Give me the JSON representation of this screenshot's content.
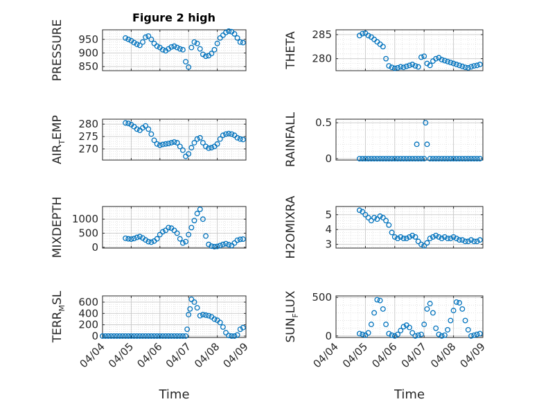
{
  "title": "Figure 2 high",
  "colors": {
    "marker": "#0072BD",
    "axis": "#262626",
    "grid": "#dcdcdc"
  },
  "chart_data": [
    {
      "type": "scatter",
      "ylabel": [
        "PRESSURE"
      ],
      "yticks": [
        850,
        900,
        950
      ],
      "ylim": [
        835,
        985
      ],
      "grid": true,
      "x": [
        0.8,
        0.9,
        1.0,
        1.1,
        1.2,
        1.3,
        1.4,
        1.5,
        1.6,
        1.7,
        1.8,
        1.9,
        2.0,
        2.1,
        2.2,
        2.3,
        2.4,
        2.5,
        2.6,
        2.7,
        2.8,
        2.9,
        3.0,
        3.1,
        3.2,
        3.3,
        3.4,
        3.5,
        3.6,
        3.7,
        3.8,
        3.9,
        4.0,
        4.1,
        4.2,
        4.3,
        4.4,
        4.5,
        4.6,
        4.7,
        4.8,
        4.9
      ],
      "y": [
        955,
        950,
        945,
        938,
        932,
        928,
        940,
        958,
        962,
        950,
        935,
        925,
        920,
        912,
        908,
        915,
        922,
        925,
        920,
        915,
        912,
        868,
        848,
        920,
        940,
        935,
        915,
        895,
        888,
        890,
        898,
        912,
        935,
        955,
        965,
        975,
        980,
        978,
        970,
        955,
        940,
        938
      ]
    },
    {
      "type": "scatter",
      "ylabel": [
        "THETA"
      ],
      "yticks": [
        280,
        285
      ],
      "ylim": [
        277.5,
        286
      ],
      "grid": true,
      "x": [
        0.8,
        0.9,
        1.0,
        1.1,
        1.2,
        1.3,
        1.4,
        1.5,
        1.6,
        1.7,
        1.8,
        1.9,
        2.0,
        2.1,
        2.2,
        2.3,
        2.4,
        2.5,
        2.6,
        2.7,
        2.8,
        2.9,
        3.0,
        3.1,
        3.2,
        3.3,
        3.4,
        3.5,
        3.6,
        3.7,
        3.8,
        3.9,
        4.0,
        4.1,
        4.2,
        4.3,
        4.4,
        4.5,
        4.6,
        4.7,
        4.8,
        4.9
      ],
      "y": [
        284.8,
        285.2,
        285.3,
        284.8,
        284.5,
        284.0,
        283.5,
        283.0,
        282.5,
        280.0,
        278.5,
        278.2,
        278.0,
        278.1,
        278.3,
        278.2,
        278.4,
        278.6,
        278.8,
        278.5,
        278.3,
        280.3,
        280.5,
        279.0,
        278.6,
        279.5,
        280.0,
        280.2,
        279.8,
        279.6,
        279.4,
        279.2,
        279.0,
        278.8,
        278.6,
        278.4,
        278.2,
        278.1,
        278.3,
        278.5,
        278.6,
        278.8
      ]
    },
    {
      "type": "scatter",
      "ylabel": [
        "AIR",
        "T",
        "EMP"
      ],
      "yticks": [
        270,
        275,
        280
      ],
      "ylim": [
        265.5,
        282
      ],
      "grid": true,
      "x": [
        0.8,
        0.9,
        1.0,
        1.1,
        1.2,
        1.3,
        1.4,
        1.5,
        1.6,
        1.7,
        1.8,
        1.9,
        2.0,
        2.1,
        2.2,
        2.3,
        2.4,
        2.5,
        2.6,
        2.7,
        2.8,
        2.9,
        3.0,
        3.1,
        3.2,
        3.3,
        3.4,
        3.5,
        3.6,
        3.7,
        3.8,
        3.9,
        4.0,
        4.1,
        4.2,
        4.3,
        4.4,
        4.5,
        4.6,
        4.7,
        4.8,
        4.9
      ],
      "y": [
        280.5,
        280.3,
        279.8,
        279.0,
        278.0,
        277.5,
        278.5,
        279.3,
        278.0,
        276.0,
        273.5,
        272.0,
        271.5,
        271.8,
        272.0,
        272.2,
        272.5,
        272.8,
        272.5,
        271.0,
        269.5,
        267.0,
        268.0,
        270.5,
        272.5,
        274.0,
        274.5,
        272.5,
        271.0,
        270.3,
        270.5,
        271.0,
        272.0,
        274.0,
        275.5,
        276.0,
        276.2,
        276.0,
        275.5,
        274.5,
        274.0,
        273.8
      ]
    },
    {
      "type": "scatter",
      "ylabel": [
        "RAINFALL"
      ],
      "yticks": [
        0,
        0.5
      ],
      "ytick_labels": [
        "0",
        "0.5"
      ],
      "ylim": [
        -0.02,
        0.55
      ],
      "grid": true,
      "x": [
        0.8,
        0.9,
        1.0,
        1.1,
        1.2,
        1.3,
        1.4,
        1.5,
        1.6,
        1.7,
        1.8,
        1.9,
        2.0,
        2.1,
        2.2,
        2.3,
        2.4,
        2.5,
        2.6,
        2.7,
        2.75,
        2.8,
        2.9,
        3.0,
        3.05,
        3.1,
        3.2,
        3.3,
        3.4,
        3.5,
        3.6,
        3.7,
        3.8,
        3.9,
        4.0,
        4.1,
        4.2,
        4.3,
        4.4,
        4.5,
        4.6,
        4.7,
        4.8,
        4.9
      ],
      "y": [
        0,
        0,
        0,
        0,
        0,
        0,
        0,
        0,
        0,
        0,
        0,
        0,
        0,
        0,
        0,
        0,
        0,
        0,
        0,
        0,
        0.2,
        0,
        0,
        0,
        0.5,
        0.2,
        0,
        0,
        0,
        0,
        0,
        0,
        0,
        0,
        0,
        0,
        0,
        0,
        0,
        0,
        0,
        0,
        0,
        0
      ]
    },
    {
      "type": "scatter",
      "ylabel": [
        "MIXDEPTH"
      ],
      "yticks": [
        0,
        500,
        1000
      ],
      "ylim": [
        -30,
        1450
      ],
      "grid": true,
      "x": [
        0.8,
        0.9,
        1.0,
        1.1,
        1.2,
        1.3,
        1.4,
        1.5,
        1.6,
        1.7,
        1.8,
        1.9,
        2.0,
        2.1,
        2.2,
        2.3,
        2.4,
        2.5,
        2.6,
        2.7,
        2.8,
        2.9,
        3.0,
        3.1,
        3.2,
        3.3,
        3.4,
        3.5,
        3.6,
        3.7,
        3.8,
        3.9,
        4.0,
        4.1,
        4.2,
        4.3,
        4.4,
        4.5,
        4.6,
        4.7,
        4.8,
        4.9
      ],
      "y": [
        320,
        300,
        290,
        310,
        350,
        380,
        330,
        260,
        200,
        180,
        220,
        300,
        450,
        550,
        600,
        700,
        680,
        600,
        500,
        300,
        150,
        200,
        450,
        700,
        950,
        1200,
        1350,
        1000,
        400,
        100,
        40,
        20,
        30,
        60,
        100,
        130,
        90,
        60,
        150,
        250,
        280,
        290
      ]
    },
    {
      "type": "scatter",
      "ylabel": [
        "H2OMIXRA"
      ],
      "yticks": [
        3,
        4,
        5
      ],
      "ylim": [
        2.75,
        5.55
      ],
      "grid": true,
      "x": [
        0.8,
        0.9,
        1.0,
        1.1,
        1.2,
        1.3,
        1.4,
        1.5,
        1.6,
        1.7,
        1.8,
        1.9,
        2.0,
        2.1,
        2.2,
        2.3,
        2.4,
        2.5,
        2.6,
        2.7,
        2.8,
        2.9,
        3.0,
        3.1,
        3.2,
        3.3,
        3.4,
        3.5,
        3.6,
        3.7,
        3.8,
        3.9,
        4.0,
        4.1,
        4.2,
        4.3,
        4.4,
        4.5,
        4.6,
        4.7,
        4.8,
        4.9
      ],
      "y": [
        5.3,
        5.2,
        5.0,
        4.8,
        4.6,
        4.8,
        4.7,
        4.9,
        4.8,
        4.6,
        4.3,
        3.8,
        3.5,
        3.4,
        3.5,
        3.4,
        3.4,
        3.5,
        3.6,
        3.5,
        3.2,
        3.0,
        2.9,
        3.1,
        3.4,
        3.5,
        3.6,
        3.5,
        3.4,
        3.5,
        3.4,
        3.4,
        3.5,
        3.4,
        3.3,
        3.3,
        3.2,
        3.2,
        3.3,
        3.2,
        3.2,
        3.3
      ]
    },
    {
      "type": "scatter",
      "ylabel": [
        "TERR",
        "M",
        "SL"
      ],
      "yticks": [
        0,
        200,
        400,
        600
      ],
      "ylim": [
        -25,
        710
      ],
      "grid": true,
      "x": [
        0.0,
        0.1,
        0.2,
        0.3,
        0.4,
        0.5,
        0.6,
        0.7,
        0.8,
        0.9,
        1.0,
        1.1,
        1.2,
        1.3,
        1.4,
        1.5,
        1.6,
        1.7,
        1.8,
        1.9,
        2.0,
        2.1,
        2.2,
        2.3,
        2.4,
        2.5,
        2.6,
        2.7,
        2.8,
        2.9,
        2.95,
        3.0,
        3.05,
        3.1,
        3.2,
        3.3,
        3.4,
        3.5,
        3.6,
        3.7,
        3.8,
        3.9,
        4.0,
        4.1,
        4.2,
        4.3,
        4.4,
        4.5,
        4.6,
        4.7,
        4.8,
        4.9
      ],
      "y": [
        0,
        0,
        0,
        0,
        0,
        0,
        0,
        0,
        0,
        0,
        0,
        0,
        0,
        0,
        0,
        0,
        0,
        0,
        0,
        0,
        0,
        0,
        0,
        0,
        0,
        0,
        0,
        0,
        0,
        0,
        120,
        380,
        480,
        650,
        600,
        500,
        360,
        380,
        370,
        360,
        340,
        300,
        280,
        240,
        160,
        60,
        10,
        0,
        0,
        20,
        120,
        150
      ]
    },
    {
      "type": "scatter",
      "ylabel": [
        "SUN",
        "F",
        "LUX"
      ],
      "yticks": [
        0,
        500
      ],
      "ylim": [
        -20,
        520
      ],
      "grid": true,
      "x": [
        0.8,
        0.9,
        1.0,
        1.1,
        1.2,
        1.3,
        1.4,
        1.5,
        1.6,
        1.7,
        1.8,
        1.9,
        2.0,
        2.1,
        2.2,
        2.3,
        2.4,
        2.5,
        2.6,
        2.7,
        2.8,
        2.9,
        3.0,
        3.1,
        3.2,
        3.3,
        3.4,
        3.5,
        3.6,
        3.7,
        3.8,
        3.9,
        4.0,
        4.1,
        4.2,
        4.3,
        4.4,
        4.5,
        4.6,
        4.7,
        4.8,
        4.9
      ],
      "y": [
        30,
        20,
        10,
        40,
        150,
        300,
        470,
        460,
        350,
        150,
        30,
        10,
        0,
        20,
        70,
        120,
        140,
        110,
        40,
        0,
        10,
        20,
        150,
        350,
        420,
        300,
        100,
        20,
        0,
        10,
        80,
        200,
        330,
        440,
        430,
        350,
        200,
        80,
        0,
        10,
        20,
        30
      ]
    }
  ],
  "x_axis": {
    "ticks": [
      0,
      1,
      2,
      3,
      4,
      5
    ],
    "tick_labels": [
      "04/04",
      "04/05",
      "04/06",
      "04/07",
      "04/08",
      "04/09"
    ],
    "xlim": [
      0,
      5
    ],
    "xlabel": "Time"
  }
}
